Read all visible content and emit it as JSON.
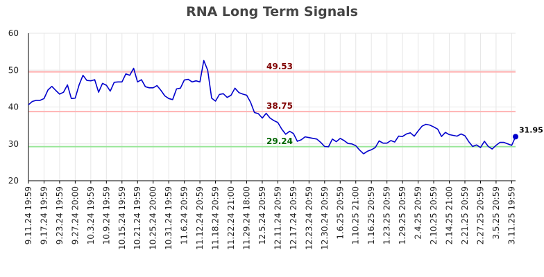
{
  "chart_data": {
    "type": "line",
    "title": "RNA Long Term Signals",
    "ylim": [
      20,
      60
    ],
    "yticks": [
      20,
      30,
      40,
      50,
      60
    ],
    "grid": true,
    "x_tick_labels": [
      "9.11.24 19:59",
      "9.17.24 19:59",
      "9.23.24 19:59",
      "9.27.24 20:00",
      "10.3.24 19:59",
      "10.9.24 19:59",
      "10.15.24 19:59",
      "10.21.24 19:59",
      "10.25.24 20:00",
      "10.31.24 19:59",
      "11.6.24 20:59",
      "11.12.24 20:59",
      "11.18.24 20:59",
      "11.22.24 21:00",
      "11.29.24 18:00",
      "12.5.24 20:59",
      "12.11.24 20:59",
      "12.17.24 20:59",
      "12.23.24 20:59",
      "12.30.24 20:59",
      "1.6.25 20:59",
      "1.10.25 21:00",
      "1.16.25 20:59",
      "1.23.25 20:59",
      "1.29.25 20:59",
      "2.4.25 20:59",
      "2.10.25 20:59",
      "2.14.25 21:00",
      "2.21.25 20:59",
      "2.27.25 20:59",
      "3.5.25 20:59",
      "3.11.25 19:59"
    ],
    "x_tick_positions": [
      0,
      4,
      8,
      12,
      16,
      20,
      24,
      28,
      32,
      36,
      40,
      44,
      48,
      52,
      56,
      60,
      64,
      68,
      72,
      76,
      80,
      84,
      88,
      92,
      96,
      100,
      104,
      108,
      112,
      116,
      120,
      124
    ],
    "series": [
      {
        "color": "#0000cc",
        "values": [
          40.6,
          41.5,
          41.8,
          41.8,
          42.3,
          44.6,
          45.6,
          44.5,
          43.5,
          44.0,
          46.0,
          42.3,
          42.4,
          46.0,
          48.6,
          47.2,
          47.1,
          47.4,
          44.0,
          46.4,
          45.9,
          44.3,
          46.7,
          46.8,
          46.8,
          49.0,
          48.6,
          50.5,
          46.8,
          47.4,
          45.5,
          45.2,
          45.2,
          45.8,
          44.5,
          43.0,
          42.3,
          42.0,
          44.9,
          45.1,
          47.3,
          47.5,
          46.8,
          47.1,
          46.8,
          52.6,
          50.0,
          42.4,
          41.6,
          43.4,
          43.6,
          42.6,
          43.2,
          45.1,
          43.9,
          43.5,
          43.2,
          41.3,
          38.5,
          38.2,
          37.0,
          38.3,
          37.0,
          36.3,
          35.8,
          34.0,
          32.6,
          33.4,
          32.8,
          30.7,
          31.1,
          31.9,
          31.7,
          31.5,
          31.3,
          30.4,
          29.3,
          29.2,
          31.3,
          30.6,
          31.5,
          30.9,
          30.1,
          30.0,
          29.5,
          28.3,
          27.3,
          28.0,
          28.4,
          29.0,
          30.8,
          30.2,
          30.2,
          30.9,
          30.5,
          32.1,
          32.0,
          32.7,
          33.0,
          32.1,
          33.5,
          34.8,
          35.3,
          35.1,
          34.6,
          34.0,
          32.0,
          33.1,
          32.5,
          32.3,
          32.1,
          32.7,
          32.2,
          30.6,
          29.3,
          29.7,
          29.0,
          30.7,
          29.3,
          28.6,
          29.6,
          30.4,
          30.4,
          30.0,
          29.6,
          31.95
        ]
      }
    ],
    "reference_lines": [
      {
        "value": 49.53,
        "label": "49.53",
        "line_color": "#ffb3b3",
        "label_color": "#800000"
      },
      {
        "value": 38.75,
        "label": "38.75",
        "line_color": "#ffb3b3",
        "label_color": "#800000"
      },
      {
        "value": 29.24,
        "label": "29.24",
        "line_color": "#99e699",
        "label_color": "#006600"
      }
    ],
    "last_point": {
      "value": 31.95,
      "label": "31.95",
      "color": "#0000cc"
    }
  }
}
